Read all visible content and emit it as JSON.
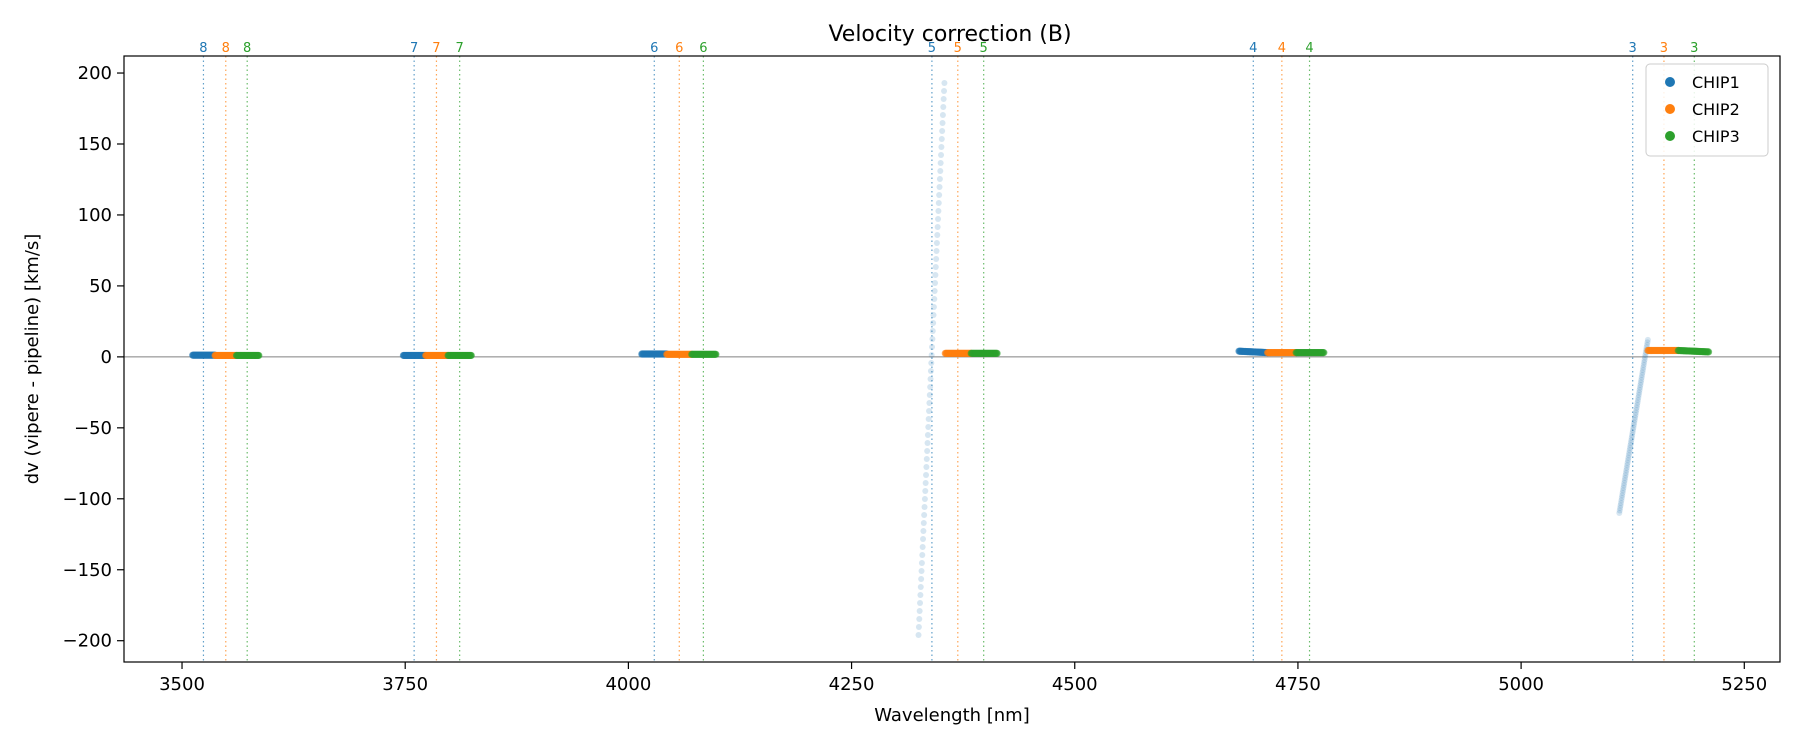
{
  "chart_data": {
    "type": "scatter",
    "title": "Velocity correction (B)",
    "xlabel": "Wavelength [nm]",
    "ylabel": "dv (vipere - pipeline) [km/s]",
    "xlim": [
      3435,
      5290
    ],
    "ylim": [
      -215,
      212
    ],
    "xticks": [
      3500,
      3750,
      4000,
      4250,
      4500,
      4750,
      5000,
      5250
    ],
    "yticks": [
      -200,
      -150,
      -100,
      -50,
      0,
      50,
      100,
      150,
      200
    ],
    "zero_line": 0,
    "legend_position": "top-right",
    "chips": [
      {
        "name": "CHIP1",
        "color": "#1f77b4"
      },
      {
        "name": "CHIP2",
        "color": "#ff7f0e"
      },
      {
        "name": "CHIP3",
        "color": "#2ca02c"
      }
    ],
    "order_markers": [
      {
        "order": "8",
        "chip": "CHIP1",
        "x": 3524
      },
      {
        "order": "8",
        "chip": "CHIP2",
        "x": 3549
      },
      {
        "order": "8",
        "chip": "CHIP3",
        "x": 3573
      },
      {
        "order": "7",
        "chip": "CHIP1",
        "x": 3760
      },
      {
        "order": "7",
        "chip": "CHIP2",
        "x": 3785
      },
      {
        "order": "7",
        "chip": "CHIP3",
        "x": 3811
      },
      {
        "order": "6",
        "chip": "CHIP1",
        "x": 4029
      },
      {
        "order": "6",
        "chip": "CHIP2",
        "x": 4057
      },
      {
        "order": "6",
        "chip": "CHIP3",
        "x": 4084
      },
      {
        "order": "5",
        "chip": "CHIP1",
        "x": 4340
      },
      {
        "order": "5",
        "chip": "CHIP2",
        "x": 4369
      },
      {
        "order": "5",
        "chip": "CHIP3",
        "x": 4398
      },
      {
        "order": "4",
        "chip": "CHIP1",
        "x": 4700
      },
      {
        "order": "4",
        "chip": "CHIP2",
        "x": 4732
      },
      {
        "order": "4",
        "chip": "CHIP3",
        "x": 4763
      },
      {
        "order": "3",
        "chip": "CHIP1",
        "x": 5125
      },
      {
        "order": "3",
        "chip": "CHIP2",
        "x": 5160
      },
      {
        "order": "3",
        "chip": "CHIP3",
        "x": 5194
      }
    ],
    "segments": [
      {
        "chip": "CHIP1",
        "x0": 3512,
        "x1": 3537,
        "y0": 1.2,
        "y1": 1.2,
        "alpha": 0.6
      },
      {
        "chip": "CHIP2",
        "x0": 3537,
        "x1": 3561,
        "y0": 1.0,
        "y1": 1.0,
        "alpha": 0.6
      },
      {
        "chip": "CHIP3",
        "x0": 3561,
        "x1": 3586,
        "y0": 1.0,
        "y1": 1.0,
        "alpha": 0.6
      },
      {
        "chip": "CHIP1",
        "x0": 3748,
        "x1": 3773,
        "y0": 1.0,
        "y1": 1.0,
        "alpha": 0.6
      },
      {
        "chip": "CHIP2",
        "x0": 3773,
        "x1": 3798,
        "y0": 1.0,
        "y1": 1.0,
        "alpha": 0.6
      },
      {
        "chip": "CHIP3",
        "x0": 3798,
        "x1": 3824,
        "y0": 1.0,
        "y1": 1.0,
        "alpha": 0.6
      },
      {
        "chip": "CHIP1",
        "x0": 4015,
        "x1": 4043,
        "y0": 2.0,
        "y1": 2.0,
        "alpha": 0.6
      },
      {
        "chip": "CHIP2",
        "x0": 4043,
        "x1": 4071,
        "y0": 1.8,
        "y1": 1.8,
        "alpha": 0.6
      },
      {
        "chip": "CHIP3",
        "x0": 4071,
        "x1": 4098,
        "y0": 1.8,
        "y1": 1.8,
        "alpha": 0.6
      },
      {
        "chip": "CHIP1",
        "x0": 4325,
        "x1": 4354,
        "y0": -196,
        "y1": 193,
        "alpha": 0.18
      },
      {
        "chip": "CHIP2",
        "x0": 4355,
        "x1": 4384,
        "y0": 2.5,
        "y1": 2.5,
        "alpha": 0.6
      },
      {
        "chip": "CHIP3",
        "x0": 4384,
        "x1": 4413,
        "y0": 2.5,
        "y1": 2.5,
        "alpha": 0.6
      },
      {
        "chip": "CHIP1",
        "x0": 4684,
        "x1": 4716,
        "y0": 4.0,
        "y1": 3.0,
        "alpha": 0.6
      },
      {
        "chip": "CHIP2",
        "x0": 4716,
        "x1": 4748,
        "y0": 3.0,
        "y1": 3.0,
        "alpha": 0.6
      },
      {
        "chip": "CHIP3",
        "x0": 4748,
        "x1": 4779,
        "y0": 3.0,
        "y1": 3.0,
        "alpha": 0.6
      },
      {
        "chip": "CHIP1",
        "x0": 5110,
        "x1": 5142,
        "y0": -110,
        "y1": 12,
        "alpha": 0.18
      },
      {
        "chip": "CHIP2",
        "x0": 5142,
        "x1": 5176,
        "y0": 4.5,
        "y1": 4.5,
        "alpha": 0.6
      },
      {
        "chip": "CHIP3",
        "x0": 5176,
        "x1": 5210,
        "y0": 4.5,
        "y1": 3.5,
        "alpha": 0.6
      }
    ]
  }
}
